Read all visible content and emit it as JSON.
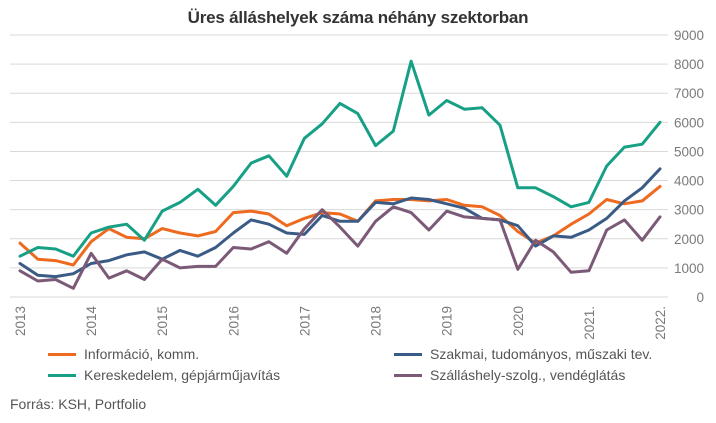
{
  "chart_data": {
    "type": "line",
    "title": "Üres álláshelyek száma néhány szektorban",
    "xlabel": "",
    "ylabel": "",
    "ylim": [
      0,
      9000
    ],
    "yticks": [
      0,
      1000,
      2000,
      3000,
      4000,
      5000,
      6000,
      7000,
      8000,
      9000
    ],
    "y_axis_position": "right",
    "grid": true,
    "legend_position": "bottom",
    "x_tick_labels": [
      "2013",
      "2014",
      "2015",
      "2016",
      "2017",
      "2018",
      "2019",
      "2020",
      "2021.",
      "2022."
    ],
    "x": [
      "2013 Q1",
      "2013 Q2",
      "2013 Q3",
      "2013 Q4",
      "2014 Q1",
      "2014 Q2",
      "2014 Q3",
      "2014 Q4",
      "2015 Q1",
      "2015 Q2",
      "2015 Q3",
      "2015 Q4",
      "2016 Q1",
      "2016 Q2",
      "2016 Q3",
      "2016 Q4",
      "2017 Q1",
      "2017 Q2",
      "2017 Q3",
      "2017 Q4",
      "2018 Q1",
      "2018 Q2",
      "2018 Q3",
      "2018 Q4",
      "2019 Q1",
      "2019 Q2",
      "2019 Q3",
      "2019 Q4",
      "2020 Q1",
      "2020 Q2",
      "2020 Q3",
      "2020 Q4",
      "2021 Q1",
      "2021 Q2",
      "2021 Q3",
      "2021 Q4",
      "2022 Q1"
    ],
    "series": [
      {
        "name": "Információ, komm.",
        "color": "#ee6a1f",
        "values": [
          1850,
          1300,
          1250,
          1100,
          1900,
          2350,
          2050,
          2000,
          2350,
          2200,
          2100,
          2250,
          2900,
          2950,
          2850,
          2450,
          2700,
          2900,
          2850,
          2600,
          3300,
          3350,
          3350,
          3300,
          3350,
          3150,
          3100,
          2800,
          2250,
          1850,
          2100,
          2500,
          2850,
          3350,
          3200,
          3300,
          3800
        ]
      },
      {
        "name": "Szakmai, tudományos, műszaki tev.",
        "color": "#3b5b87",
        "values": [
          1150,
          750,
          700,
          800,
          1150,
          1250,
          1450,
          1550,
          1300,
          1600,
          1400,
          1700,
          2200,
          2650,
          2500,
          2200,
          2150,
          2800,
          2600,
          2600,
          3250,
          3200,
          3400,
          3350,
          3200,
          3050,
          2700,
          2650,
          2450,
          1750,
          2100,
          2050,
          2300,
          2700,
          3300,
          3750,
          4400
        ]
      },
      {
        "name": "Kereskedelem, gépjárműjavítás",
        "color": "#17a086",
        "values": [
          1400,
          1700,
          1650,
          1400,
          2200,
          2400,
          2500,
          1950,
          2950,
          3250,
          3700,
          3150,
          3800,
          4600,
          4850,
          4150,
          5450,
          5950,
          6650,
          6300,
          5200,
          5700,
          8100,
          6250,
          6750,
          6450,
          6500,
          5900,
          3750,
          3750,
          3450,
          3100,
          3250,
          4500,
          5150,
          5250,
          6000
        ]
      },
      {
        "name": "Szálláshely-szolg., vendéglátás",
        "color": "#7b5a78",
        "values": [
          900,
          550,
          600,
          300,
          1500,
          650,
          900,
          600,
          1300,
          1000,
          1050,
          1050,
          1700,
          1650,
          1900,
          1500,
          2350,
          3000,
          2400,
          1750,
          2600,
          3100,
          2900,
          2300,
          2950,
          2750,
          2700,
          2650,
          950,
          1950,
          1550,
          850,
          900,
          2300,
          2650,
          1950,
          2750
        ]
      }
    ]
  },
  "legend": {
    "item1": "Információ, komm.",
    "item2": "Szakmai, tudományos, műszaki tev.",
    "item3": "Kereskedelem, gépjárműjavítás",
    "item4": "Szálláshely-szolg., vendéglátás"
  },
  "source": "Forrás: KSH, Portfolio"
}
